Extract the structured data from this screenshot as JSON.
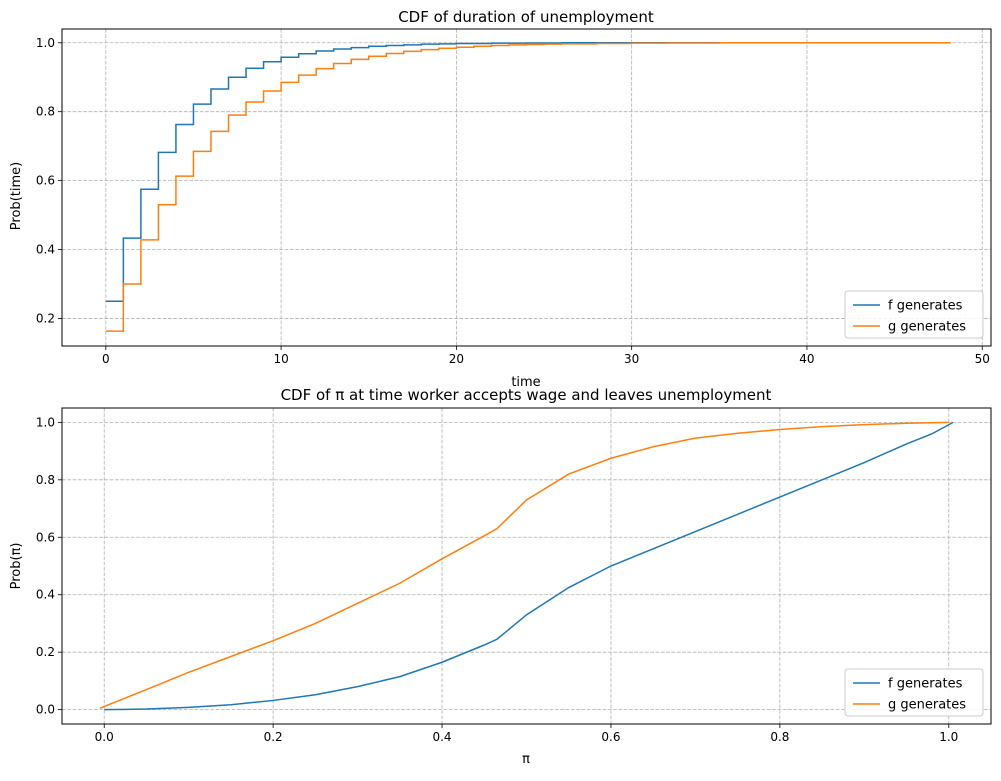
{
  "chart_data": [
    {
      "type": "line",
      "title": "CDF of duration of unemployment",
      "xlabel": "time",
      "ylabel": "Prob(time)",
      "xlim": [
        -2.5,
        50.5
      ],
      "ylim": [
        0.12,
        1.04
      ],
      "xticks": [
        0,
        10,
        20,
        30,
        40,
        50
      ],
      "yticks": [
        0.2,
        0.4,
        0.6,
        0.8,
        1.0
      ],
      "xtick_labels": [
        "0",
        "10",
        "20",
        "30",
        "40",
        "50"
      ],
      "ytick_labels": [
        "0.2",
        "0.4",
        "0.6",
        "0.8",
        "1.0"
      ],
      "grid": true,
      "legend_position": "lower right",
      "series": [
        {
          "name": "f generates",
          "color": "#1f77b4",
          "step": true,
          "x": [
            0,
            1,
            2,
            3,
            4,
            5,
            6,
            7,
            8,
            9,
            10,
            11,
            12,
            13,
            14,
            15,
            16,
            17,
            18,
            19,
            20,
            22,
            24,
            26,
            28,
            30,
            35.2
          ],
          "y": [
            0.25,
            0.433,
            0.575,
            0.682,
            0.763,
            0.822,
            0.866,
            0.9,
            0.926,
            0.945,
            0.958,
            0.968,
            0.976,
            0.982,
            0.986,
            0.99,
            0.992,
            0.994,
            0.996,
            0.997,
            0.998,
            0.999,
            0.9995,
            1.0,
            1.0,
            1.0,
            1.0
          ]
        },
        {
          "name": "g generates",
          "color": "#ff7f0e",
          "step": true,
          "x": [
            0,
            1,
            2,
            3,
            4,
            5,
            6,
            7,
            8,
            9,
            10,
            11,
            12,
            13,
            14,
            15,
            16,
            17,
            18,
            19,
            20,
            21,
            22,
            23,
            24,
            25,
            26,
            28,
            30,
            32,
            35,
            40,
            48.2
          ],
          "y": [
            0.163,
            0.3,
            0.428,
            0.53,
            0.613,
            0.685,
            0.743,
            0.79,
            0.828,
            0.86,
            0.885,
            0.906,
            0.925,
            0.94,
            0.952,
            0.961,
            0.969,
            0.975,
            0.98,
            0.984,
            0.987,
            0.99,
            0.992,
            0.994,
            0.995,
            0.996,
            0.997,
            0.998,
            0.999,
            0.9995,
            1.0,
            1.0,
            1.0
          ]
        }
      ]
    },
    {
      "type": "line",
      "title": "CDF of π at time worker accepts wage and leaves unemployment",
      "xlabel": "π",
      "ylabel": "Prob(π)",
      "xlim": [
        -0.05,
        1.05
      ],
      "ylim": [
        -0.05,
        1.05
      ],
      "xticks": [
        0,
        0.2,
        0.4,
        0.6,
        0.8,
        1.0
      ],
      "yticks": [
        0,
        0.2,
        0.4,
        0.6,
        0.8,
        1.0
      ],
      "xtick_labels": [
        "0.0",
        "0.2",
        "0.4",
        "0.6",
        "0.8",
        "1.0"
      ],
      "ytick_labels": [
        "0.0",
        "0.2",
        "0.4",
        "0.6",
        "0.8",
        "1.0"
      ],
      "grid": true,
      "legend_position": "lower right",
      "series": [
        {
          "name": "f generates",
          "color": "#1f77b4",
          "x": [
            0,
            0.05,
            0.1,
            0.15,
            0.2,
            0.25,
            0.3,
            0.35,
            0.4,
            0.45,
            0.465,
            0.5,
            0.55,
            0.6,
            0.65,
            0.7,
            0.75,
            0.8,
            0.85,
            0.9,
            0.95,
            0.98,
            1.005
          ],
          "y": [
            0.0,
            0.002,
            0.008,
            0.017,
            0.032,
            0.052,
            0.08,
            0.115,
            0.165,
            0.225,
            0.245,
            0.33,
            0.425,
            0.5,
            0.56,
            0.62,
            0.68,
            0.74,
            0.8,
            0.86,
            0.925,
            0.96,
            1.0
          ]
        },
        {
          "name": "g generates",
          "color": "#ff7f0e",
          "x": [
            -0.005,
            0.05,
            0.1,
            0.15,
            0.2,
            0.25,
            0.3,
            0.35,
            0.4,
            0.45,
            0.465,
            0.5,
            0.55,
            0.6,
            0.65,
            0.7,
            0.75,
            0.8,
            0.85,
            0.9,
            0.95,
            1.0
          ],
          "y": [
            0.005,
            0.07,
            0.13,
            0.185,
            0.24,
            0.3,
            0.37,
            0.44,
            0.525,
            0.605,
            0.63,
            0.73,
            0.82,
            0.875,
            0.915,
            0.945,
            0.962,
            0.975,
            0.985,
            0.992,
            0.997,
            1.0
          ]
        }
      ]
    }
  ]
}
